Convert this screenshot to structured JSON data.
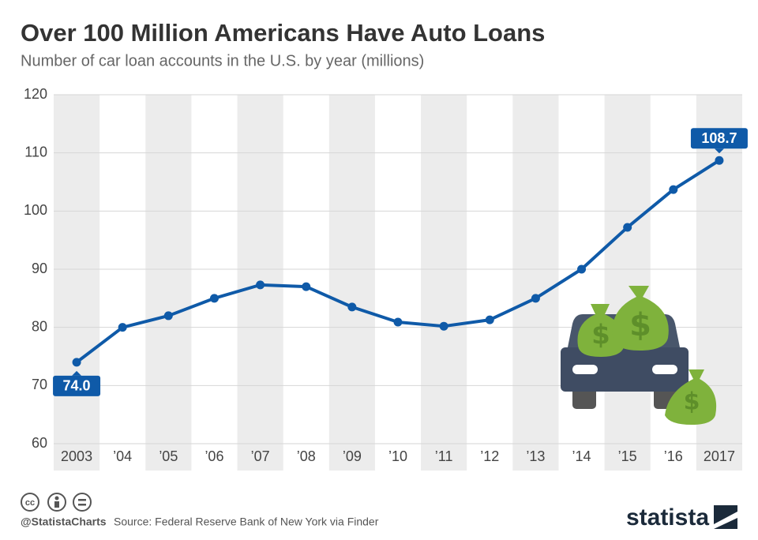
{
  "chart_data": {
    "type": "line",
    "title": "Over 100 Million Americans Have Auto Loans",
    "subtitle": "Number of car loan accounts in the U.S. by year (millions)",
    "categories": [
      "2003",
      "’04",
      "’05",
      "’06",
      "’07",
      "’08",
      "’09",
      "’10",
      "’11",
      "’12",
      "’13",
      "’14",
      "’15",
      "’16",
      "2017"
    ],
    "values": [
      74.0,
      80,
      82,
      85,
      87.3,
      87,
      83.5,
      80.9,
      80.2,
      81.3,
      85,
      90,
      97.2,
      103.7,
      108.7
    ],
    "value_labels": [
      "74.0",
      null,
      null,
      null,
      null,
      null,
      null,
      null,
      null,
      null,
      null,
      null,
      null,
      null,
      "108.7"
    ],
    "color": "#0f5aa8",
    "ylim": [
      60,
      120
    ],
    "yticks": [
      60,
      70,
      80,
      90,
      100,
      110,
      120
    ],
    "grid": true,
    "source": "Source: Federal Reserve Bank of New York via Finder",
    "handle": "@StatistaCharts",
    "brand": "statista"
  }
}
